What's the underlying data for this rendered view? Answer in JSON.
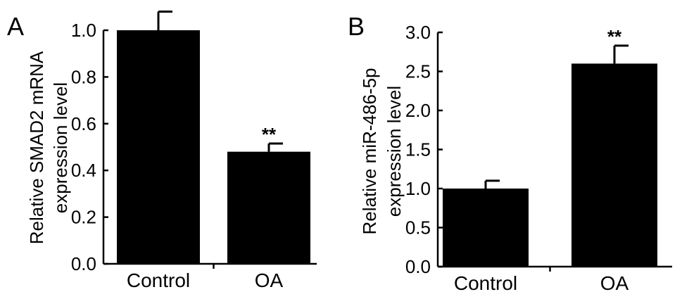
{
  "chart_data": [
    {
      "type": "bar",
      "panel_label": "A",
      "categories": [
        "Control",
        "OA"
      ],
      "values": [
        1.0,
        0.48
      ],
      "errors": [
        0.08,
        0.035
      ],
      "significance": [
        "",
        "**"
      ],
      "ylabel_line1": "Relative SMAD2 mRNA",
      "ylabel_line2": "expression level",
      "ylim": [
        0,
        1.0
      ],
      "yticks": [
        "0.0",
        "0.2",
        "0.4",
        "0.6",
        "0.8",
        "1.0"
      ],
      "bar_color": "#000000"
    },
    {
      "type": "bar",
      "panel_label": "B",
      "categories": [
        "Control",
        "OA"
      ],
      "values": [
        1.0,
        2.6
      ],
      "errors": [
        0.1,
        0.23
      ],
      "significance": [
        "",
        "**"
      ],
      "ylabel_line1": "Relative miR-486-5p",
      "ylabel_line2": "expression level",
      "ylim": [
        0,
        3.0
      ],
      "yticks": [
        "0.0",
        "0.5",
        "1.0",
        "1.5",
        "2.0",
        "2.5",
        "3.0"
      ],
      "bar_color": "#000000"
    }
  ]
}
